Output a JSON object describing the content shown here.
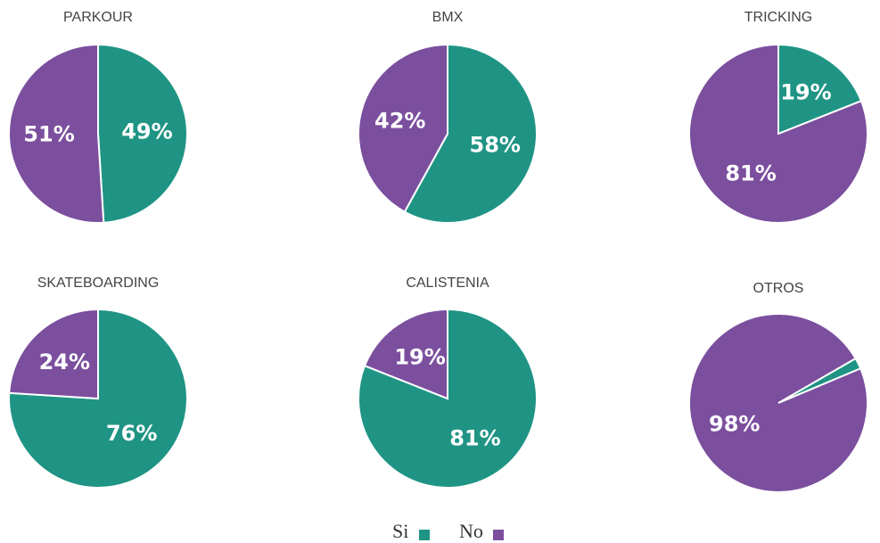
{
  "legend": [
    {
      "name": "Si",
      "color": "#1f9484"
    },
    {
      "name": "No",
      "color": "#7b4f9e"
    }
  ],
  "chart_data": [
    {
      "type": "pie",
      "title": "PARKOUR",
      "values": [
        49,
        51
      ],
      "value_labels": [
        "49%",
        "51%"
      ]
    },
    {
      "type": "pie",
      "title": "BMX",
      "values": [
        58,
        42
      ],
      "value_labels": [
        "58%",
        "42%"
      ]
    },
    {
      "type": "pie",
      "title": "TRICKING",
      "values": [
        19,
        81
      ],
      "value_labels": [
        "19%",
        "81%"
      ]
    },
    {
      "type": "pie",
      "title": "SKATEBOARDING",
      "values": [
        76,
        24
      ],
      "value_labels": [
        "76%",
        "24%"
      ]
    },
    {
      "type": "pie",
      "title": "CALISTENIA",
      "values": [
        81,
        19
      ],
      "value_labels": [
        "81%",
        "19%"
      ]
    },
    {
      "type": "pie",
      "title": "OTROS",
      "values": [
        2,
        98
      ],
      "value_labels": [
        "2%",
        "98%"
      ]
    }
  ]
}
